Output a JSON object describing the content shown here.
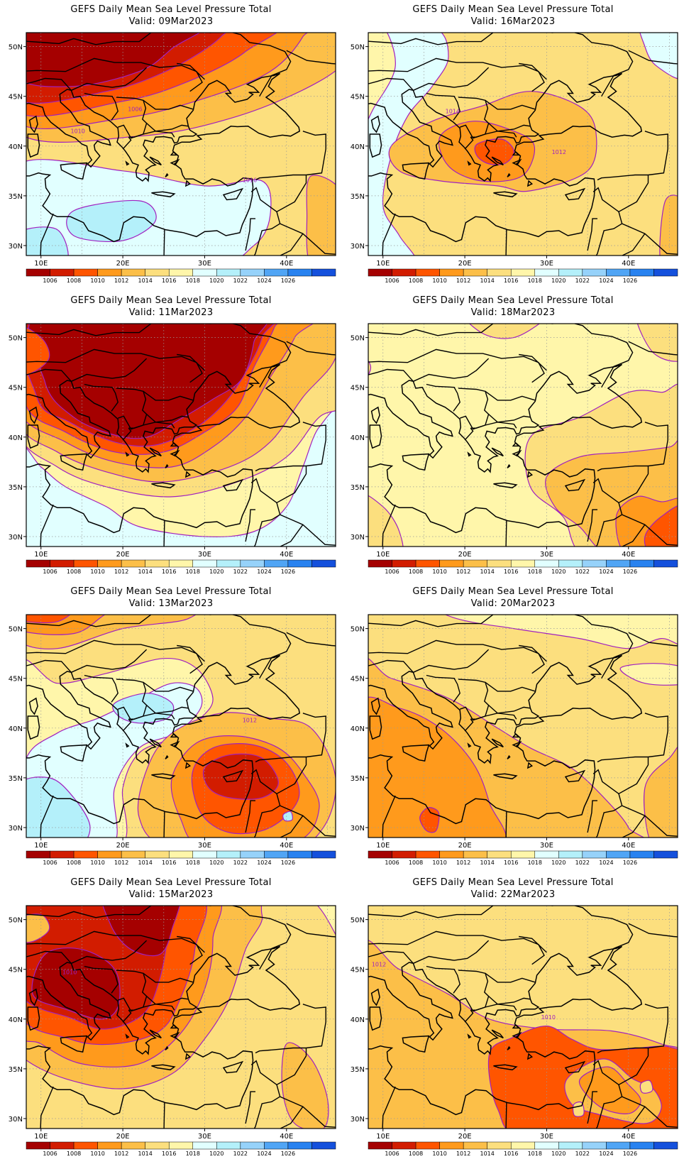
{
  "colorbar": {
    "colors": [
      "#a50000",
      "#d21c00",
      "#ff5500",
      "#ff9a1c",
      "#fcbf48",
      "#fcdf7e",
      "#fff6aa",
      "#e1ffff",
      "#b4f0fa",
      "#96d2fa",
      "#50a5f5",
      "#2882f0",
      "#1450dc"
    ],
    "labels": [
      "1006",
      "1008",
      "1010",
      "1012",
      "1014",
      "1016",
      "1018",
      "1020",
      "1022",
      "1024",
      "1026"
    ]
  },
  "axes": {
    "lat_labels": [
      "50N",
      "45N",
      "40N",
      "35N",
      "30N"
    ],
    "lon_labels": [
      "10E",
      "20E",
      "30E",
      "40E"
    ]
  },
  "contour_color": "#a020c0",
  "panels": [
    {
      "title": "GEFS Daily Mean Sea Level Pressure Total",
      "valid": "Valid: 09Mar2023",
      "labels": [
        {
          "text": "1006",
          "lon": 21.5,
          "lat": 43.5
        },
        {
          "text": "1010",
          "lon": 14.5,
          "lat": 41.3
        },
        {
          "text": "1016",
          "lon": 35.5,
          "lat": 36.4
        }
      ]
    },
    {
      "title": "GEFS Daily Mean Sea Level Pressure Total",
      "valid": "Valid: 16Mar2023",
      "labels": [
        {
          "text": "1014",
          "lon": 18.5,
          "lat": 43.3
        },
        {
          "text": "1012",
          "lon": 31.5,
          "lat": 39.2
        }
      ]
    },
    {
      "title": "GEFS Daily Mean Sea Level Pressure Total",
      "valid": "Valid: 11Mar2023",
      "labels": []
    },
    {
      "title": "GEFS Daily Mean Sea Level Pressure Total",
      "valid": "Valid: 18Mar2023",
      "labels": []
    },
    {
      "title": "GEFS Daily Mean Sea Level Pressure Total",
      "valid": "Valid: 13Mar2023",
      "labels": [
        {
          "text": "1012",
          "lon": 35.5,
          "lat": 40.6
        }
      ]
    },
    {
      "title": "GEFS Daily Mean Sea Level Pressure Total",
      "valid": "Valid: 20Mar2023",
      "labels": []
    },
    {
      "title": "GEFS Daily Mean Sea Level Pressure Total",
      "valid": "Valid: 15Mar2023",
      "labels": [
        {
          "text": "1010",
          "lon": 13.5,
          "lat": 44.5
        }
      ]
    },
    {
      "title": "GEFS Daily Mean Sea Level Pressure Total",
      "valid": "Valid: 22Mar2023",
      "labels": [
        {
          "text": "1012",
          "lon": 9.5,
          "lat": 45.3
        },
        {
          "text": "1010",
          "lon": 30.2,
          "lat": 40.0
        }
      ]
    }
  ]
}
